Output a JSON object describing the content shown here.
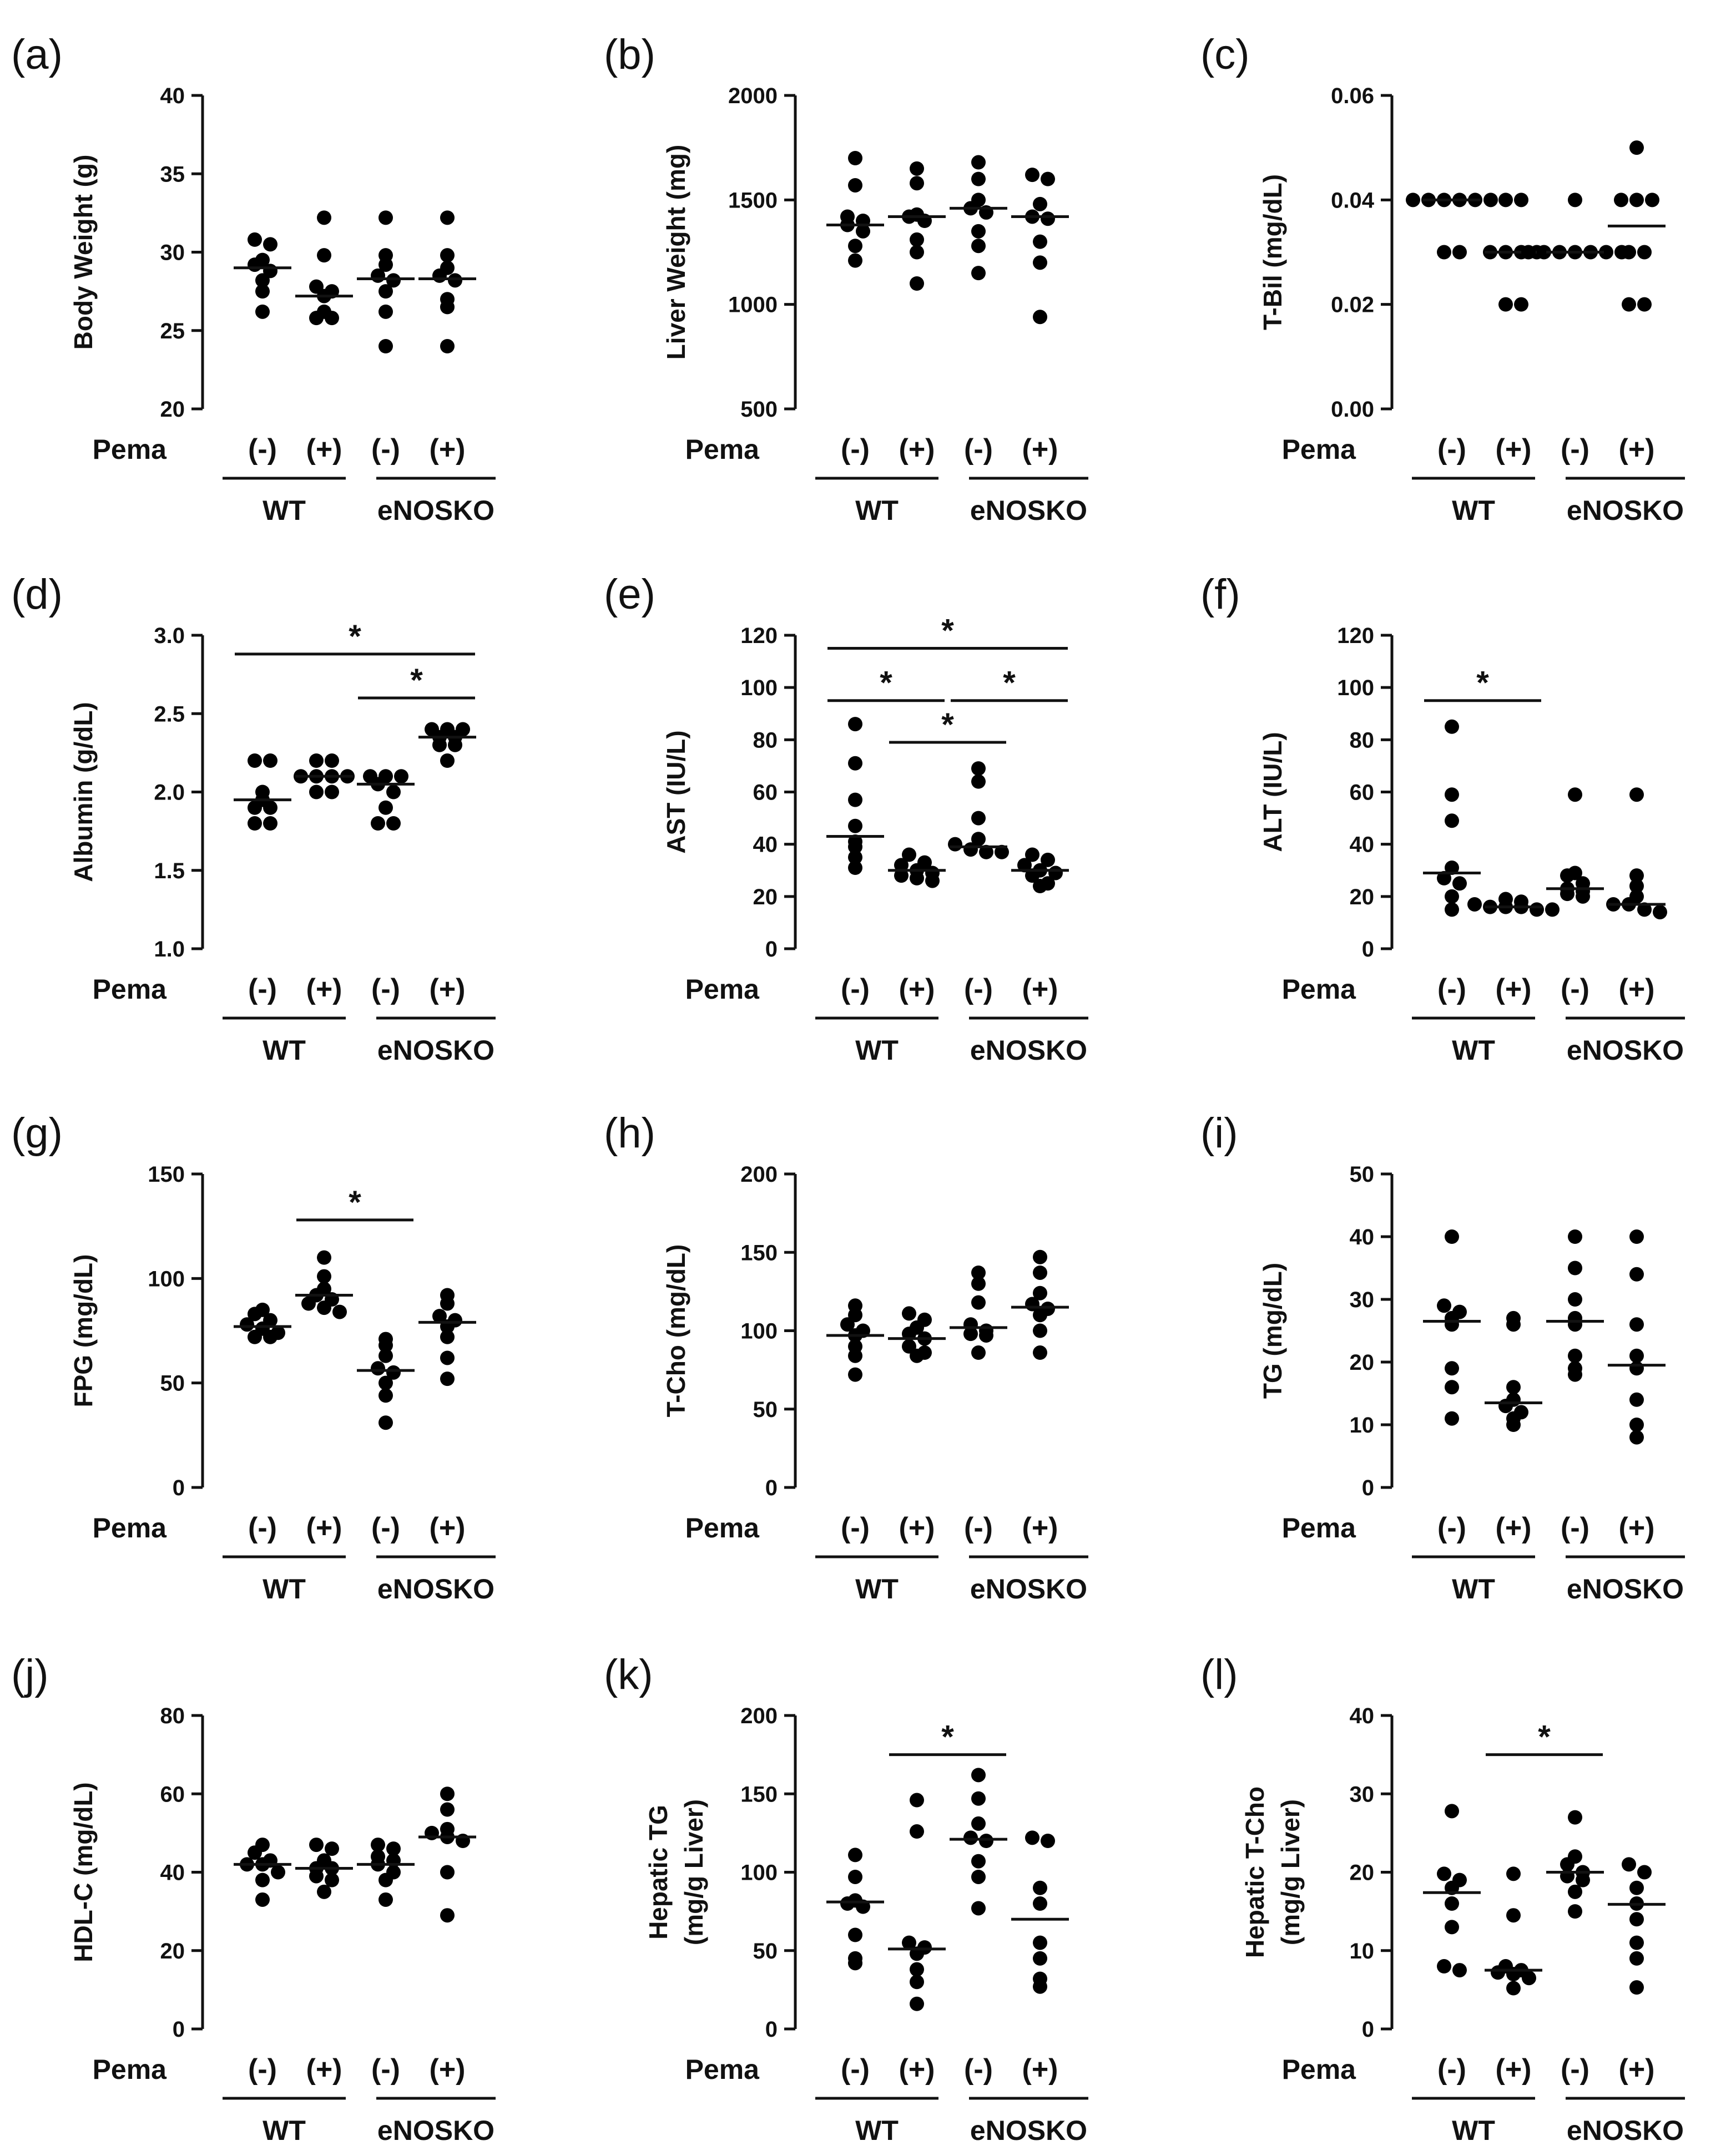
{
  "figure": {
    "group_labels": [
      "WT",
      "eNOSKO"
    ],
    "treatment_row_label": "Pema",
    "treatment_labels": [
      "(-)",
      "(+)",
      "(-)",
      "(+)"
    ]
  },
  "chart_data": [
    {
      "panel": "(a)",
      "type": "scatter",
      "ylabel": [
        "Body Weight (g)"
      ],
      "ylim": [
        20,
        40
      ],
      "yticks": [
        "20",
        "25",
        "30",
        "35",
        "40"
      ],
      "categories": [
        "WT (-)",
        "WT (+)",
        "eNOSKO (-)",
        "eNOSKO (+)"
      ],
      "points": [
        [
          30.8,
          30.5,
          29.5,
          29.2,
          28.8,
          28.2,
          27.5,
          26.2
        ],
        [
          32.2,
          29.8,
          27.8,
          27.5,
          27.2,
          26.2,
          25.8,
          25.8
        ],
        [
          32.2,
          29.8,
          29.2,
          28.5,
          28.2,
          27.5,
          26.2,
          24.0
        ],
        [
          32.2,
          29.8,
          29.0,
          28.5,
          28.2,
          27.0,
          26.5,
          24.0
        ]
      ],
      "medians": [
        29.0,
        27.2,
        28.3,
        28.3
      ],
      "significance": []
    },
    {
      "panel": "(b)",
      "type": "scatter",
      "ylabel": [
        "Liver Weight (mg)"
      ],
      "ylim": [
        500,
        2000
      ],
      "yticks": [
        "500",
        "1000",
        "1500",
        "2000"
      ],
      "categories": [
        "WT (-)",
        "WT (+)",
        "eNOSKO (-)",
        "eNOSKO (+)"
      ],
      "points": [
        [
          1700,
          1570,
          1420,
          1400,
          1380,
          1350,
          1280,
          1210
        ],
        [
          1650,
          1580,
          1430,
          1420,
          1400,
          1310,
          1250,
          1100
        ],
        [
          1680,
          1600,
          1500,
          1460,
          1440,
          1350,
          1280,
          1150
        ],
        [
          1620,
          1600,
          1480,
          1420,
          1410,
          1300,
          1200,
          940
        ]
      ],
      "medians": [
        1380,
        1420,
        1460,
        1420
      ],
      "significance": []
    },
    {
      "panel": "(c)",
      "type": "scatter",
      "ylabel": [
        "T-Bil (mg/dL)"
      ],
      "ylim": [
        0,
        0.06
      ],
      "yticks": [
        "0.00",
        "0.02",
        "0.04",
        "0.06"
      ],
      "categories": [
        "WT (-)",
        "WT (+)",
        "eNOSKO (-)",
        "eNOSKO (+)"
      ],
      "points": [
        [
          0.04,
          0.04,
          0.04,
          0.04,
          0.04,
          0.04,
          0.03,
          0.03
        ],
        [
          0.04,
          0.04,
          0.03,
          0.03,
          0.03,
          0.03,
          0.02,
          0.02
        ],
        [
          0.04,
          0.03,
          0.03,
          0.03,
          0.03,
          0.03,
          0.03,
          0.03
        ],
        [
          0.05,
          0.04,
          0.04,
          0.04,
          0.03,
          0.03,
          0.02,
          0.02
        ]
      ],
      "medians": [
        0.04,
        0.03,
        0.03,
        0.035
      ],
      "significance": []
    },
    {
      "panel": "(d)",
      "type": "scatter",
      "ylabel": [
        "Albumin (g/dL)"
      ],
      "ylim": [
        1.0,
        3.0
      ],
      "yticks": [
        "1.0",
        "1.5",
        "2.0",
        "2.5",
        "3.0"
      ],
      "categories": [
        "WT (-)",
        "WT (+)",
        "eNOSKO (-)",
        "eNOSKO (+)"
      ],
      "points": [
        [
          2.2,
          2.2,
          2.0,
          1.95,
          1.9,
          1.9,
          1.8,
          1.8
        ],
        [
          2.2,
          2.2,
          2.1,
          2.1,
          2.1,
          2.1,
          2.0,
          2.0
        ],
        [
          2.1,
          2.1,
          2.1,
          2.05,
          2.0,
          1.9,
          1.8,
          1.8
        ],
        [
          2.4,
          2.4,
          2.4,
          2.35,
          2.35,
          2.3,
          2.3,
          2.2
        ]
      ],
      "medians": [
        1.95,
        2.1,
        2.05,
        2.35
      ],
      "significance": [
        {
          "from": 0,
          "to": 3,
          "value": 2.88,
          "label": "*"
        },
        {
          "from": 2,
          "to": 3,
          "value": 2.6,
          "label": "*"
        }
      ]
    },
    {
      "panel": "(e)",
      "type": "scatter",
      "ylabel": [
        "AST (IU/L)"
      ],
      "ylim": [
        0,
        120
      ],
      "yticks": [
        "0",
        "20",
        "40",
        "60",
        "80",
        "100",
        "120"
      ],
      "categories": [
        "WT (-)",
        "WT (+)",
        "eNOSKO (-)",
        "eNOSKO (+)"
      ],
      "points": [
        [
          86,
          71,
          57,
          47,
          41,
          39,
          35,
          31
        ],
        [
          36,
          33,
          32,
          30,
          29,
          28,
          27,
          26
        ],
        [
          69,
          64,
          50,
          42,
          40,
          38,
          37,
          37
        ],
        [
          36,
          34,
          32,
          30,
          29,
          28,
          25,
          24
        ]
      ],
      "medians": [
        43,
        30,
        39,
        30
      ],
      "significance": [
        {
          "from": 0,
          "to": 3,
          "value": 115,
          "label": "*"
        },
        {
          "from": 0,
          "to": 1,
          "value": 95,
          "label": "*"
        },
        {
          "from": 1,
          "to": 2,
          "value": 79,
          "label": "*"
        },
        {
          "from": 2,
          "to": 3,
          "value": 95,
          "label": "*"
        }
      ]
    },
    {
      "panel": "(f)",
      "type": "scatter",
      "ylabel": [
        "ALT (IU/L)"
      ],
      "ylim": [
        0,
        120
      ],
      "yticks": [
        "0",
        "20",
        "40",
        "60",
        "80",
        "100",
        "120"
      ],
      "categories": [
        "WT (-)",
        "WT (+)",
        "eNOSKO (-)",
        "eNOSKO (+)"
      ],
      "points": [
        [
          85,
          59,
          49,
          31,
          27,
          25,
          20,
          15
        ],
        [
          19,
          18,
          17,
          16,
          16,
          16,
          15,
          15
        ],
        [
          59,
          29,
          28,
          25,
          23,
          22,
          21,
          20
        ],
        [
          59,
          28,
          24,
          20,
          17,
          17,
          15,
          14
        ]
      ],
      "medians": [
        29,
        16,
        23,
        17
      ],
      "significance": [
        {
          "from": 0,
          "to": 1,
          "value": 95,
          "label": "*"
        }
      ]
    },
    {
      "panel": "(g)",
      "type": "scatter",
      "ylabel": [
        "FPG (mg/dL)"
      ],
      "ylim": [
        0,
        150
      ],
      "yticks": [
        "0",
        "50",
        "100",
        "150"
      ],
      "categories": [
        "WT (-)",
        "WT (+)",
        "eNOSKO (-)",
        "eNOSKO (+)"
      ],
      "points": [
        [
          85,
          83,
          80,
          78,
          76,
          74,
          72,
          72
        ],
        [
          110,
          101,
          95,
          92,
          90,
          88,
          86,
          84
        ],
        [
          71,
          68,
          63,
          57,
          55,
          50,
          44,
          31
        ],
        [
          92,
          88,
          82,
          80,
          77,
          72,
          62,
          52
        ]
      ],
      "medians": [
        77,
        92,
        56,
        79
      ],
      "significance": [
        {
          "from": 1,
          "to": 2,
          "value": 128,
          "label": "*"
        }
      ]
    },
    {
      "panel": "(h)",
      "type": "scatter",
      "ylabel": [
        "T-Cho (mg/dL)"
      ],
      "ylim": [
        0,
        200
      ],
      "yticks": [
        "0",
        "50",
        "100",
        "150",
        "200"
      ],
      "categories": [
        "WT (-)",
        "WT (+)",
        "eNOSKO (-)",
        "eNOSKO (+)"
      ],
      "points": [
        [
          116,
          110,
          104,
          100,
          97,
          90,
          84,
          72
        ],
        [
          111,
          107,
          102,
          98,
          95,
          90,
          86,
          84
        ],
        [
          137,
          130,
          118,
          104,
          100,
          98,
          97,
          86
        ],
        [
          147,
          137,
          124,
          117,
          114,
          110,
          100,
          86
        ]
      ],
      "medians": [
        97,
        95,
        102,
        115
      ],
      "significance": []
    },
    {
      "panel": "(i)",
      "type": "scatter",
      "ylabel": [
        "TG (mg/dL)"
      ],
      "ylim": [
        0,
        50
      ],
      "yticks": [
        "0",
        "10",
        "20",
        "30",
        "40",
        "50"
      ],
      "categories": [
        "WT (-)",
        "WT (+)",
        "eNOSKO (-)",
        "eNOSKO (+)"
      ],
      "points": [
        [
          40,
          29,
          28,
          27,
          26,
          19,
          16,
          11
        ],
        [
          27,
          26,
          16,
          14,
          13,
          12,
          11,
          10
        ],
        [
          40,
          35,
          30,
          27,
          26,
          21,
          19,
          18
        ],
        [
          40,
          34,
          26,
          21,
          19,
          14,
          10,
          8
        ]
      ],
      "medians": [
        26.5,
        13.5,
        26.5,
        19.5
      ],
      "significance": []
    },
    {
      "panel": "(j)",
      "type": "scatter",
      "ylabel": [
        "HDL-C (mg/dL)"
      ],
      "ylim": [
        0,
        80
      ],
      "yticks": [
        "0",
        "20",
        "40",
        "60",
        "80"
      ],
      "categories": [
        "WT (-)",
        "WT (+)",
        "eNOSKO (-)",
        "eNOSKO (+)"
      ],
      "points": [
        [
          47,
          45,
          43,
          42,
          42,
          40,
          38,
          33
        ],
        [
          47,
          46,
          43,
          41,
          41,
          39,
          38,
          35
        ],
        [
          47,
          46,
          44,
          43,
          42,
          40,
          38,
          33
        ],
        [
          60,
          56,
          51,
          50,
          49,
          48,
          40,
          29
        ]
      ],
      "medians": [
        42,
        41,
        42,
        49
      ],
      "significance": []
    },
    {
      "panel": "(k)",
      "type": "scatter",
      "ylabel": [
        "Hepatic TG",
        "(mg/g Liver)"
      ],
      "ylim": [
        0,
        200
      ],
      "yticks": [
        "0",
        "50",
        "100",
        "150",
        "200"
      ],
      "categories": [
        "WT (-)",
        "WT (+)",
        "eNOSKO (-)",
        "eNOSKO (+)"
      ],
      "points": [
        [
          111,
          97,
          82,
          80,
          78,
          60,
          45,
          42
        ],
        [
          146,
          126,
          55,
          52,
          48,
          38,
          30,
          16
        ],
        [
          162,
          147,
          131,
          122,
          120,
          107,
          97,
          77
        ],
        [
          122,
          120,
          90,
          80,
          55,
          45,
          32,
          27
        ]
      ],
      "medians": [
        81,
        51,
        121,
        70
      ],
      "significance": [
        {
          "from": 1,
          "to": 2,
          "value": 175,
          "label": "*"
        }
      ]
    },
    {
      "panel": "(l)",
      "type": "scatter",
      "ylabel": [
        "Hepatic T-Cho",
        "(mg/g Liver)"
      ],
      "ylim": [
        0,
        40
      ],
      "yticks": [
        "0",
        "10",
        "20",
        "30",
        "40"
      ],
      "categories": [
        "WT (-)",
        "WT (+)",
        "eNOSKO (-)",
        "eNOSKO (+)"
      ],
      "points": [
        [
          27.8,
          19.8,
          19.0,
          18.0,
          16.0,
          13.0,
          8.0,
          7.5
        ],
        [
          19.8,
          14.5,
          8.0,
          7.5,
          7.2,
          7.0,
          6.5,
          5.2
        ],
        [
          27.0,
          22.0,
          21.0,
          20.0,
          19.5,
          19.0,
          17.5,
          15.0
        ],
        [
          21.0,
          20.0,
          18.0,
          16.0,
          14.0,
          11.0,
          9.0,
          5.3
        ]
      ],
      "medians": [
        17.4,
        7.5,
        20.0,
        15.9
      ],
      "significance": [
        {
          "from": 1,
          "to": 2,
          "value": 35,
          "label": "*"
        }
      ]
    }
  ]
}
